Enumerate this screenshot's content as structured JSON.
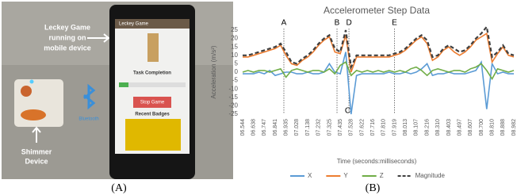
{
  "figure_a": {
    "labels": [
      "Leckey Game",
      "running on",
      "mobile device",
      "Shimmer",
      "Device",
      "Bluetooth"
    ],
    "screen": [
      "Leckey Game",
      "Task Completion",
      "Stop Game",
      "Recent Badges"
    ],
    "caption": "(A)"
  },
  "figure_b_caption": "(B)",
  "chart_data": {
    "type": "line",
    "title": "Accelerometer Step Data",
    "x_label": "Time (seconds:milliseconds)",
    "y_label": "Acceleration (m/s²)",
    "categories": [
      "06.544",
      null,
      "06.638",
      null,
      "06.747",
      null,
      "06.841",
      null,
      "06.935",
      null,
      "07.028",
      null,
      "07.138",
      null,
      "07.232",
      null,
      "07.325",
      null,
      "07.435",
      null,
      "07.528",
      null,
      "07.622",
      null,
      "07.716",
      null,
      "07.810",
      null,
      "07.919",
      null,
      "08.013",
      null,
      "08.107",
      null,
      "08.216",
      null,
      "08.310",
      null,
      "08.403",
      null,
      "08.497",
      null,
      "08.607",
      null,
      "08.700",
      null,
      "08.810",
      null,
      "08.888",
      null,
      "08.982"
    ],
    "ylim": [
      -25,
      25
    ],
    "yticks": [
      25,
      20,
      15,
      10,
      5,
      0,
      -5,
      -10,
      -15,
      -20,
      -25
    ],
    "grid": false,
    "annotations": [
      "A",
      "B",
      "C",
      "D",
      "E"
    ],
    "series": [
      {
        "name": "X",
        "color": "#5b9bd5",
        "values": [
          -1,
          -1,
          -1,
          0,
          -1,
          1,
          -2,
          -1,
          0,
          0,
          -1,
          -1,
          0,
          -1,
          -1,
          0,
          5,
          0,
          -1,
          12,
          -25,
          -2,
          -1,
          -1,
          -1,
          -1,
          -1,
          0,
          -1,
          -1,
          0,
          -1,
          0,
          2,
          5,
          -2,
          -1,
          -1,
          0,
          -1,
          -1,
          -1,
          0,
          1,
          6,
          -22,
          5,
          -1,
          0,
          -1,
          -1
        ]
      },
      {
        "name": "Y",
        "color": "#ed7d31",
        "values": [
          9,
          9,
          10,
          11,
          12,
          13,
          14,
          16,
          10,
          5,
          4,
          7,
          9,
          12,
          16,
          19,
          21,
          12,
          11,
          22,
          0,
          9,
          9,
          9,
          9,
          9,
          9,
          9,
          10,
          11,
          13,
          16,
          19,
          21,
          17,
          7,
          9,
          13,
          15,
          12,
          10,
          12,
          15,
          19,
          21,
          23,
          6,
          11,
          15,
          10,
          9
        ]
      },
      {
        "name": "Z",
        "color": "#70ad47",
        "values": [
          0,
          1,
          0,
          1,
          1,
          0,
          1,
          2,
          -3,
          1,
          2,
          1,
          0,
          1,
          1,
          0,
          2,
          -1,
          4,
          6,
          -2,
          1,
          0,
          1,
          0,
          1,
          0,
          1,
          0,
          1,
          0,
          2,
          3,
          1,
          -2,
          1,
          2,
          1,
          0,
          1,
          1,
          0,
          2,
          3,
          5,
          1,
          -4,
          2,
          1,
          0,
          1
        ]
      },
      {
        "name": "Magnitude",
        "color": "#404040",
        "dashed": true,
        "values": [
          10,
          10,
          11,
          12,
          13,
          14,
          15,
          17,
          12,
          6,
          5,
          8,
          10,
          13,
          17,
          20,
          22,
          14,
          12,
          25,
          3,
          10,
          10,
          10,
          10,
          10,
          10,
          10,
          11,
          12,
          14,
          17,
          20,
          22,
          19,
          9,
          10,
          14,
          16,
          14,
          12,
          13,
          16,
          20,
          23,
          27,
          9,
          12,
          16,
          11,
          10
        ]
      }
    ]
  }
}
